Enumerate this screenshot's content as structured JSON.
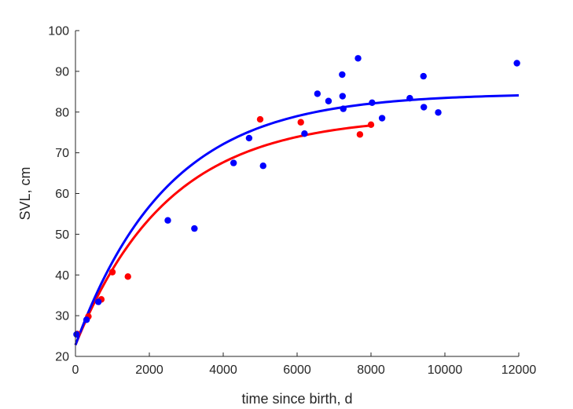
{
  "chart_data": {
    "type": "scatter",
    "title": "",
    "xlabel": "time since birth, d",
    "ylabel": "SVL, cm",
    "xlim": [
      0,
      12000
    ],
    "ylim": [
      20,
      100
    ],
    "xticks": [
      "0",
      "2000",
      "4000",
      "6000",
      "8000",
      "10000",
      "12000"
    ],
    "yticks": [
      "20",
      "30",
      "40",
      "50",
      "60",
      "70",
      "80",
      "90",
      "100"
    ],
    "grid": false,
    "legend": "none",
    "series": [
      {
        "color": "#ff0000",
        "marker": "point",
        "points": [
          [
            50,
            25.5
          ],
          [
            350,
            29.8
          ],
          [
            700,
            34.0
          ],
          [
            1000,
            40.7
          ],
          [
            1420,
            39.6
          ],
          [
            5000,
            78.2
          ],
          [
            6100,
            77.5
          ],
          [
            7700,
            74.5
          ],
          [
            8000,
            76.9
          ]
        ]
      },
      {
        "color": "#0000ff",
        "marker": "point",
        "points": [
          [
            30,
            25.4
          ],
          [
            300,
            29.0
          ],
          [
            620,
            33.4
          ],
          [
            2500,
            53.4
          ],
          [
            3220,
            51.4
          ],
          [
            4280,
            67.5
          ],
          [
            4700,
            73.6
          ],
          [
            5080,
            66.8
          ],
          [
            6200,
            74.7
          ],
          [
            6550,
            84.5
          ],
          [
            6850,
            82.7
          ],
          [
            7220,
            89.2
          ],
          [
            7230,
            83.9
          ],
          [
            7250,
            80.8
          ],
          [
            7650,
            93.2
          ],
          [
            8030,
            82.3
          ],
          [
            8300,
            78.5
          ],
          [
            9050,
            83.4
          ],
          [
            9420,
            88.8
          ],
          [
            9430,
            81.2
          ],
          [
            9820,
            79.9
          ],
          [
            11950,
            92.0
          ]
        ]
      }
    ],
    "fits": [
      {
        "color": "#ff0000",
        "model": "von Bertalanffy",
        "x_range": [
          0,
          8000
        ],
        "y0": 22.8,
        "y_inf": 79.0,
        "rate_per_day": 0.0004
      },
      {
        "color": "#0000ff",
        "model": "von Bertalanffy",
        "x_range": [
          0,
          12000
        ],
        "y0": 22.8,
        "y_inf": 84.6,
        "rate_per_day": 0.0004
      }
    ]
  }
}
